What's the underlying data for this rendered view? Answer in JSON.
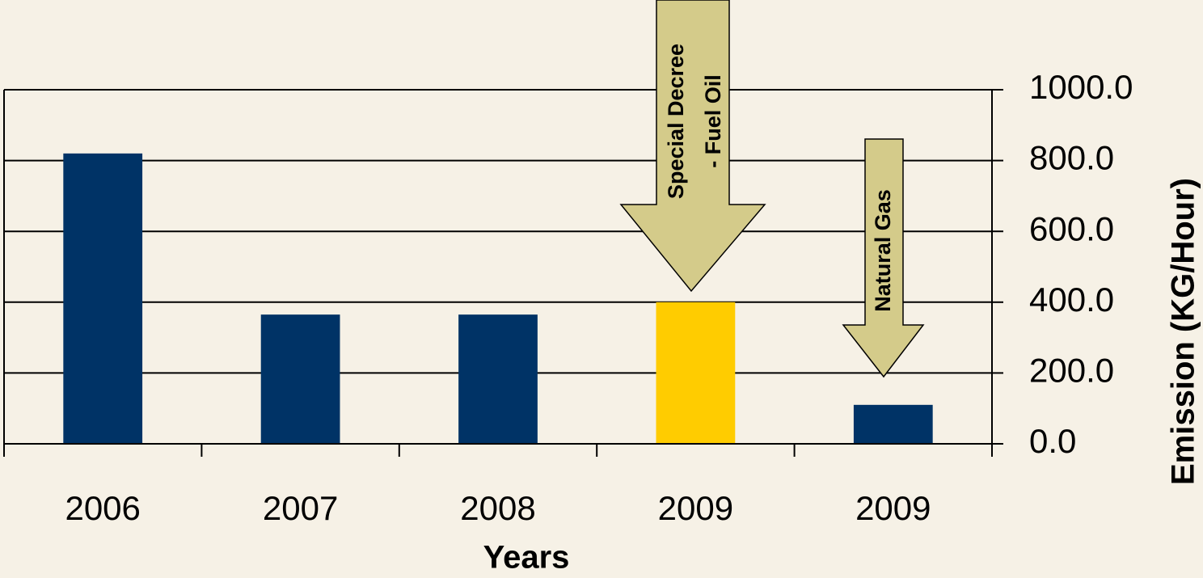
{
  "chart_data": {
    "type": "bar",
    "x_label": "Years",
    "y_label": "Emission (KG/Hour)",
    "categories": [
      "2006",
      "2007",
      "2008",
      "2009",
      "2009"
    ],
    "values": [
      820,
      365,
      365,
      400,
      110
    ],
    "colors": [
      "#003366",
      "#003366",
      "#003366",
      "#ffcc00",
      "#003366"
    ],
    "ylim": [
      0,
      1000
    ],
    "yticks": [
      {
        "value": 0,
        "label": "0.0"
      },
      {
        "value": 200,
        "label": "200.0"
      },
      {
        "value": 400,
        "label": "400.0"
      },
      {
        "value": 600,
        "label": "600.0"
      },
      {
        "value": 800,
        "label": "800.0"
      },
      {
        "value": 1000,
        "label": "1000.0"
      }
    ],
    "grid": true,
    "y_axis_side": "right",
    "annotations": [
      {
        "lines": [
          "Special Decree",
          "- Fuel Oil"
        ]
      },
      {
        "lines": [
          "Natural Gas"
        ]
      }
    ]
  }
}
